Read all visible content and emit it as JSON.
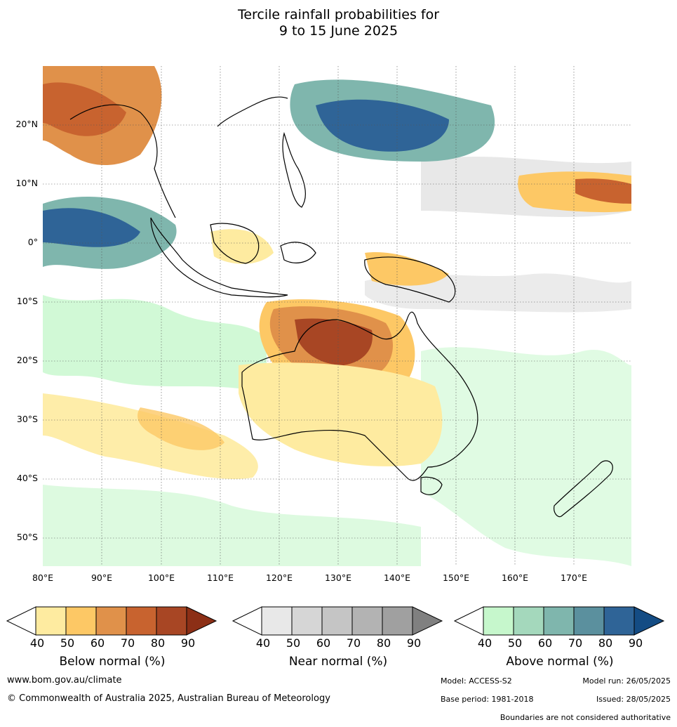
{
  "title": {
    "line1": "Tercile rainfall probabilities for",
    "line2": "9 to 15 June 2025"
  },
  "map": {
    "lat_labels": [
      "20°N",
      "10°N",
      "0°",
      "10°S",
      "20°S",
      "30°S",
      "40°S",
      "50°S"
    ],
    "lon_labels": [
      "80°E",
      "90°E",
      "100°E",
      "110°E",
      "120°E",
      "130°E",
      "140°E",
      "150°E",
      "160°E",
      "170°E"
    ]
  },
  "legend": {
    "below": {
      "title": "Below normal (%)",
      "ticks": [
        "40",
        "50",
        "60",
        "70",
        "80",
        "90"
      ],
      "colors": [
        "#ffffff",
        "#feeba0",
        "#fdc865",
        "#e0914a",
        "#c8632f",
        "#a84624",
        "#8c2f16"
      ]
    },
    "near": {
      "title": "Near normal (%)",
      "ticks": [
        "40",
        "50",
        "60",
        "70",
        "80",
        "90"
      ],
      "colors": [
        "#ffffff",
        "#e8e8e8",
        "#d6d6d6",
        "#c5c5c5",
        "#b3b3b3",
        "#a0a0a0",
        "#808080"
      ]
    },
    "above": {
      "title": "Above normal (%)",
      "ticks": [
        "40",
        "50",
        "60",
        "70",
        "80",
        "90"
      ],
      "colors": [
        "#ffffff",
        "#c6f7cc",
        "#a4d8bc",
        "#7fb6ad",
        "#5b909e",
        "#2f6497",
        "#144c84"
      ]
    }
  },
  "footer": {
    "website": "www.bom.gov.au/climate",
    "copyright": "© Commonwealth of Australia 2025, Australian Bureau of Meteorology",
    "model": "Model: ACCESS-S2",
    "model_run": "Model run: 26/05/2025",
    "base_period": "Base period: 1981-2018",
    "issued": "Issued: 28/05/2025",
    "disclaimer": "Boundaries are not considered authoritative"
  }
}
